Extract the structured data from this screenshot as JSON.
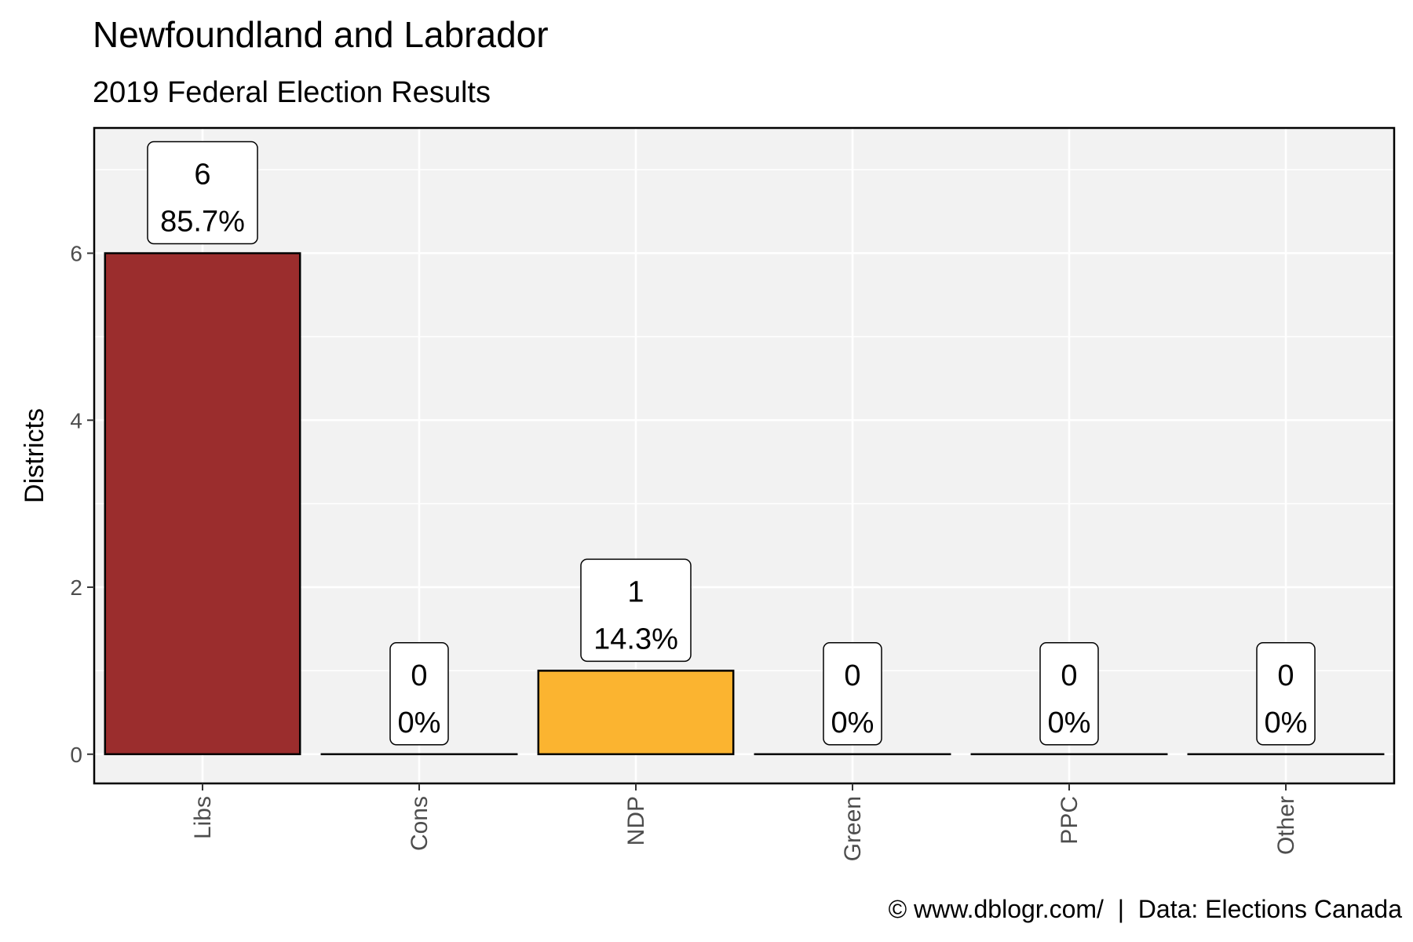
{
  "chart_data": {
    "type": "bar",
    "title": "Newfoundland and Labrador",
    "subtitle": "2019 Federal Election Results",
    "ylabel": "Districts",
    "xlabel": "",
    "ylim": [
      -0.35,
      7.5
    ],
    "yticks": [
      0,
      2,
      4,
      6
    ],
    "grid": true,
    "categories": [
      "Libs",
      "Cons",
      "NDP",
      "Green",
      "PPC",
      "Other"
    ],
    "values": [
      6,
      0,
      1,
      0,
      0,
      0
    ],
    "percent_labels": [
      "85.7%",
      "0%",
      "14.3%",
      "0%",
      "0%",
      "0%"
    ],
    "colors": [
      "#9b2d2d",
      "#000000",
      "#fbb430",
      "#000000",
      "#000000",
      "#000000"
    ]
  },
  "caption": "© www.dblogr.com/  |  Data: Elections Canada"
}
